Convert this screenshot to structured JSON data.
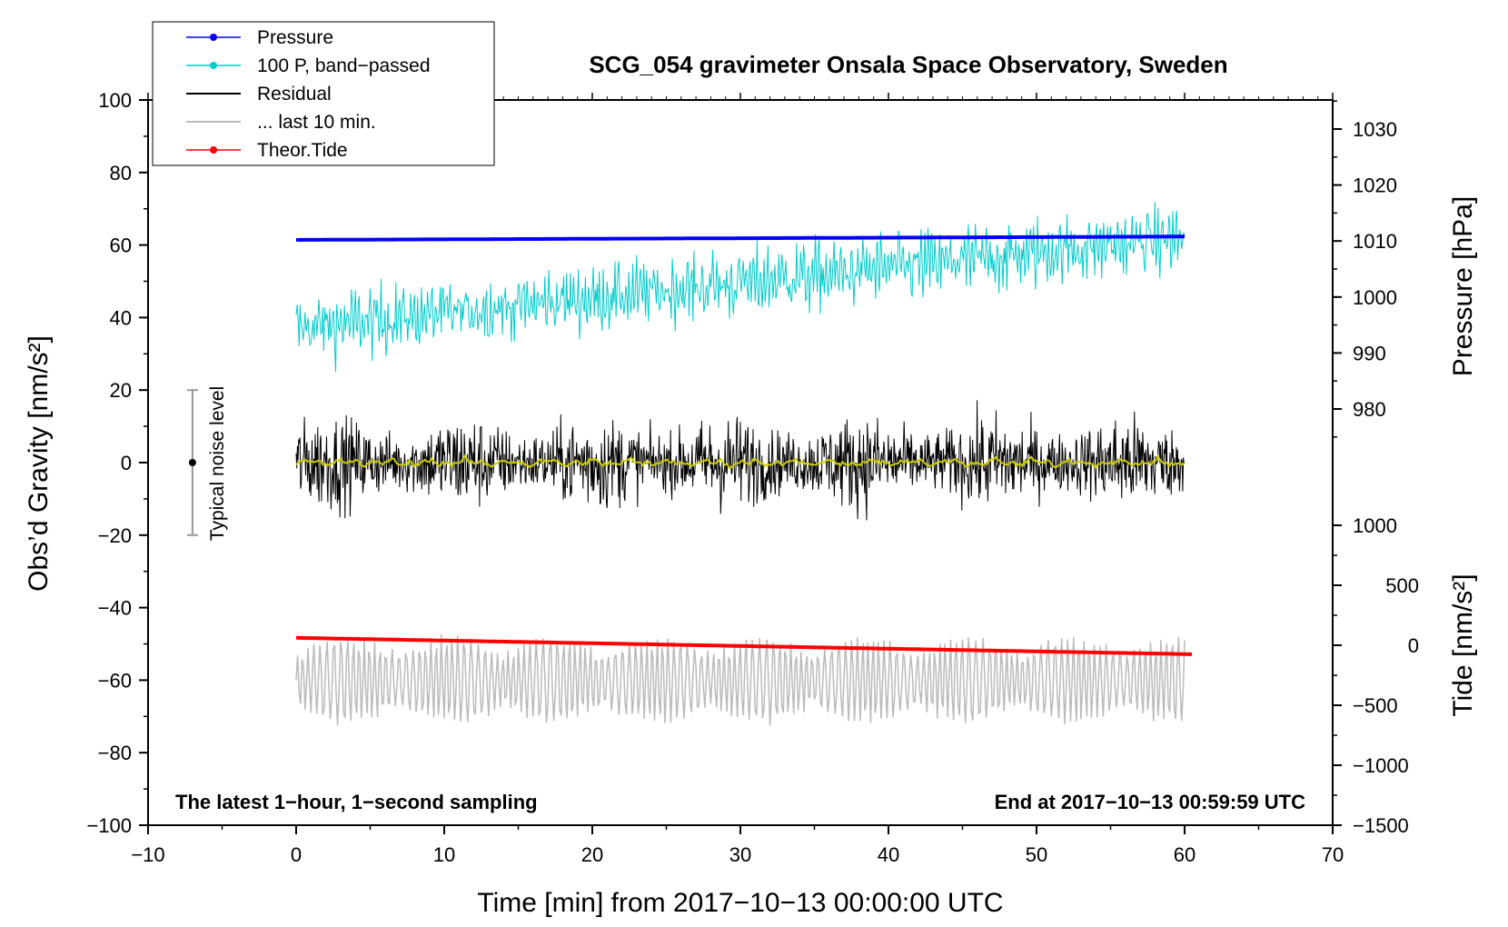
{
  "chart_data": {
    "type": "line",
    "title": "SCG_054 gravimeter Onsala Space Observatory, Sweden",
    "annotation_left": "The latest 1−hour, 1−second sampling",
    "annotation_right": "End at 2017−10−13 00:59:59 UTC",
    "noise_label": "Typical noise level",
    "xlabel": "Time [min] from 2017−10−13 00:00:00 UTC",
    "ylabel_left": "Obs’d Gravity [nm/s²]",
    "ylabel_pressure": "Pressure [hPa]",
    "ylabel_tide": "Tide [nm/s²]",
    "xlim": [
      -10,
      70
    ],
    "ylim_left": [
      -100,
      100
    ],
    "x_ticks": [
      "−10",
      "0",
      "10",
      "20",
      "30",
      "40",
      "50",
      "60",
      "70"
    ],
    "y_left_ticks": [
      "100",
      "80",
      "60",
      "40",
      "20",
      "0",
      "−20",
      "−40",
      "−60",
      "−80",
      "−100"
    ],
    "pressure_ticks": [
      "1030",
      "1020",
      "1010",
      "1000",
      "990",
      "980"
    ],
    "tide_ticks": [
      "1000",
      "500",
      "0",
      "−500",
      "−1000",
      "−1500"
    ],
    "legend": [
      {
        "label": "Pressure",
        "color": "#0000ff",
        "marker": true
      },
      {
        "label": "100 P, band−passed",
        "color": "#00cccc",
        "marker": true
      },
      {
        "label": "Residual",
        "color": "#000000",
        "marker": false
      },
      {
        "label": "... last 10 min.",
        "color": "#bbbbbb",
        "marker": false
      },
      {
        "label": "Theor.Tide",
        "color": "#ff0000",
        "marker": true
      }
    ],
    "series": [
      {
        "name": "Pressure",
        "axis": "pressure_hPa",
        "x": [
          0,
          60
        ],
        "values": [
          1010.2,
          1010.8
        ],
        "color": "#0000ff"
      },
      {
        "name": "100 P, band−passed",
        "axis": "gravity_nm_s2",
        "x": [
          0,
          60
        ],
        "values": [
          37,
          62
        ],
        "color": "#00cccc"
      },
      {
        "name": "Residual",
        "axis": "gravity_nm_s2",
        "x": [
          0,
          60
        ],
        "values": [
          0,
          0
        ],
        "amplitude": 12,
        "color": "#000000"
      },
      {
        "name": "Residual smoothed",
        "axis": "gravity_nm_s2",
        "x": [
          0,
          60
        ],
        "values": [
          0,
          0
        ],
        "color": "#cccc00"
      },
      {
        "name": "... last 10 min.",
        "axis": "gravity_nm_s2",
        "x": [
          0,
          60
        ],
        "values": [
          -60,
          -60
        ],
        "amplitude": 14,
        "color": "#bbbbbb"
      },
      {
        "name": "Theor.Tide",
        "axis": "tide_nm_s2",
        "x": [
          0,
          60.5
        ],
        "values": [
          62,
          -75
        ],
        "color": "#ff0000"
      }
    ],
    "noise_level": {
      "x": -7,
      "center": 0,
      "low": -20,
      "high": 20
    }
  }
}
